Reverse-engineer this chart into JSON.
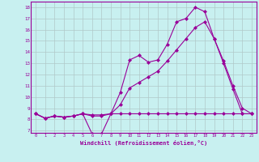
{
  "x_ticks": [
    0,
    1,
    2,
    3,
    4,
    5,
    6,
    7,
    8,
    9,
    10,
    11,
    12,
    13,
    14,
    15,
    16,
    17,
    18,
    19,
    20,
    21,
    22,
    23
  ],
  "line1_x": [
    0,
    1,
    2,
    3,
    4,
    5,
    6,
    7,
    8,
    9,
    10,
    11,
    12,
    13,
    14,
    15,
    16,
    17,
    18,
    19,
    20,
    21,
    22,
    23
  ],
  "line1_y": [
    8.5,
    8.1,
    8.3,
    8.2,
    8.3,
    8.5,
    6.7,
    6.7,
    8.5,
    10.4,
    13.3,
    13.7,
    13.1,
    13.3,
    14.7,
    16.7,
    17.0,
    18.0,
    17.6,
    15.2,
    13.0,
    10.7,
    8.5,
    8.5
  ],
  "line2_x": [
    0,
    1,
    2,
    3,
    4,
    5,
    6,
    7,
    8,
    9,
    10,
    11,
    12,
    13,
    14,
    15,
    16,
    17,
    18,
    19,
    20,
    21,
    22,
    23
  ],
  "line2_y": [
    8.5,
    8.1,
    8.3,
    8.2,
    8.3,
    8.5,
    8.4,
    8.4,
    8.5,
    8.5,
    8.5,
    8.5,
    8.5,
    8.5,
    8.5,
    8.5,
    8.5,
    8.5,
    8.5,
    8.5,
    8.5,
    8.5,
    8.5,
    8.5
  ],
  "line3_x": [
    0,
    1,
    2,
    3,
    4,
    5,
    6,
    7,
    8,
    9,
    10,
    11,
    12,
    13,
    14,
    15,
    16,
    17,
    18,
    19,
    20,
    21,
    22,
    23
  ],
  "line3_y": [
    8.5,
    8.1,
    8.3,
    8.2,
    8.3,
    8.5,
    8.3,
    8.3,
    8.5,
    9.3,
    10.8,
    11.3,
    11.8,
    12.3,
    13.2,
    14.2,
    15.2,
    16.2,
    16.7,
    15.2,
    13.2,
    11.0,
    9.0,
    8.5
  ],
  "color": "#990099",
  "bg_color": "#c8f0f0",
  "grid_color": "#b0c8c8",
  "xlabel": "Windchill (Refroidissement éolien,°C)",
  "ylim": [
    6.8,
    18.5
  ],
  "xlim": [
    -0.5,
    23.5
  ],
  "yticks": [
    7,
    8,
    9,
    10,
    11,
    12,
    13,
    14,
    15,
    16,
    17,
    18
  ],
  "marker": "D",
  "markersize": 2.0,
  "linewidth": 0.8
}
